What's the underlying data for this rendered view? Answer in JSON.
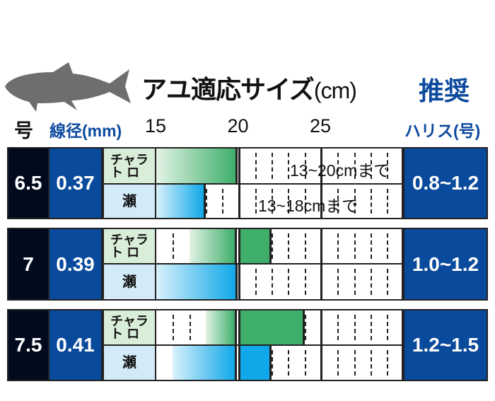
{
  "header": {
    "title": "アユ適応サイズ",
    "title_unit": "(cm)",
    "recommended": "推奨",
    "col_gou": "号",
    "col_diameter": "線径(mm)",
    "col_harisu": "ハリス(号)"
  },
  "colors": {
    "navy": "#020a1e",
    "blue": "#0a4a9c",
    "green": "#3fae6b",
    "cyan": "#10a8e8",
    "fish": "#6e6e6e"
  },
  "chart_data": {
    "type": "table",
    "axis_ticks": [
      15,
      20,
      25
    ],
    "x_range": [
      15,
      30
    ],
    "row_labels": {
      "chara_toro": "チャラ\nト ロ",
      "se": "瀬"
    },
    "rows": [
      {
        "gou": "6.5",
        "diameter": "0.37",
        "harisu": "0.8~1.2",
        "chara_toro": [
          {
            "from": 15,
            "to": 20,
            "style": "gradient",
            "color": "green"
          }
        ],
        "se": [
          {
            "from": 15,
            "to": 18,
            "style": "gradient",
            "color": "cyan"
          }
        ],
        "chara_toro_note": "13~20cmまで",
        "se_note": "13~18cmまで"
      },
      {
        "gou": "7",
        "diameter": "0.39",
        "harisu": "1.0~1.2",
        "chara_toro": [
          {
            "from": 17,
            "to": 20,
            "style": "gradient",
            "color": "green"
          },
          {
            "from": 20,
            "to": 22,
            "style": "solid",
            "color": "green"
          }
        ],
        "se": [
          {
            "from": 15,
            "to": 20,
            "style": "gradient",
            "color": "cyan"
          }
        ]
      },
      {
        "gou": "7.5",
        "diameter": "0.41",
        "harisu": "1.2~1.5",
        "chara_toro": [
          {
            "from": 18,
            "to": 20,
            "style": "gradient",
            "color": "green"
          },
          {
            "from": 20,
            "to": 24,
            "style": "solid",
            "color": "green"
          }
        ],
        "se": [
          {
            "from": 16,
            "to": 20,
            "style": "gradient",
            "color": "cyan"
          },
          {
            "from": 20,
            "to": 22,
            "style": "solid",
            "color": "cyan"
          }
        ]
      }
    ]
  }
}
